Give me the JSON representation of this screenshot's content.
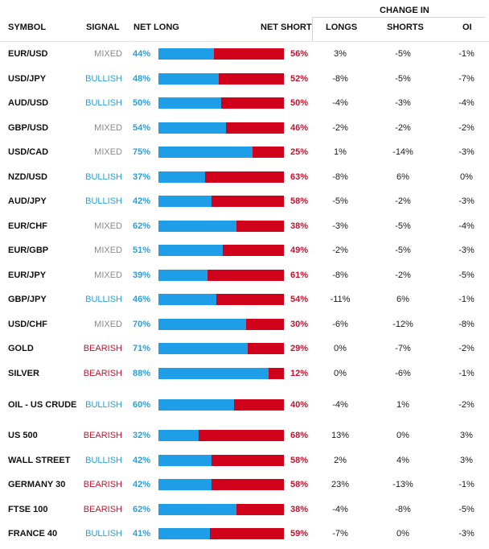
{
  "header": {
    "symbol": "SYMBOL",
    "signal": "SIGNAL",
    "net_long": "NET LONG",
    "net_short": "NET SHORT",
    "change_in": "CHANGE IN",
    "longs": "LONGS",
    "shorts": "SHORTS",
    "oi": "OI"
  },
  "colors": {
    "long_bar": "#1e9ee6",
    "short_bar": "#d0021b",
    "bullish": "#2a9fd8",
    "bearish": "#c4122f",
    "mixed": "#8a8a8a"
  },
  "rows": [
    {
      "symbol": "EUR/USD",
      "signal": "MIXED",
      "net_long": "44%",
      "net_long_value": 44,
      "net_short": "56%",
      "longs": "3%",
      "shorts": "-5%",
      "oi": "-1%"
    },
    {
      "symbol": "USD/JPY",
      "signal": "BULLISH",
      "net_long": "48%",
      "net_long_value": 48,
      "net_short": "52%",
      "longs": "-8%",
      "shorts": "-5%",
      "oi": "-7%"
    },
    {
      "symbol": "AUD/USD",
      "signal": "BULLISH",
      "net_long": "50%",
      "net_long_value": 50,
      "net_short": "50%",
      "longs": "-4%",
      "shorts": "-3%",
      "oi": "-4%"
    },
    {
      "symbol": "GBP/USD",
      "signal": "MIXED",
      "net_long": "54%",
      "net_long_value": 54,
      "net_short": "46%",
      "longs": "-2%",
      "shorts": "-2%",
      "oi": "-2%"
    },
    {
      "symbol": "USD/CAD",
      "signal": "MIXED",
      "net_long": "75%",
      "net_long_value": 75,
      "net_short": "25%",
      "longs": "1%",
      "shorts": "-14%",
      "oi": "-3%"
    },
    {
      "symbol": "NZD/USD",
      "signal": "BULLISH",
      "net_long": "37%",
      "net_long_value": 37,
      "net_short": "63%",
      "longs": "-8%",
      "shorts": "6%",
      "oi": "0%"
    },
    {
      "symbol": "AUD/JPY",
      "signal": "BULLISH",
      "net_long": "42%",
      "net_long_value": 42,
      "net_short": "58%",
      "longs": "-5%",
      "shorts": "-2%",
      "oi": "-3%"
    },
    {
      "symbol": "EUR/CHF",
      "signal": "MIXED",
      "net_long": "62%",
      "net_long_value": 62,
      "net_short": "38%",
      "longs": "-3%",
      "shorts": "-5%",
      "oi": "-4%"
    },
    {
      "symbol": "EUR/GBP",
      "signal": "MIXED",
      "net_long": "51%",
      "net_long_value": 51,
      "net_short": "49%",
      "longs": "-2%",
      "shorts": "-5%",
      "oi": "-3%"
    },
    {
      "symbol": "EUR/JPY",
      "signal": "MIXED",
      "net_long": "39%",
      "net_long_value": 39,
      "net_short": "61%",
      "longs": "-8%",
      "shorts": "-2%",
      "oi": "-5%"
    },
    {
      "symbol": "GBP/JPY",
      "signal": "BULLISH",
      "net_long": "46%",
      "net_long_value": 46,
      "net_short": "54%",
      "longs": "-11%",
      "shorts": "6%",
      "oi": "-1%"
    },
    {
      "symbol": "USD/CHF",
      "signal": "MIXED",
      "net_long": "70%",
      "net_long_value": 70,
      "net_short": "30%",
      "longs": "-6%",
      "shorts": "-12%",
      "oi": "-8%"
    },
    {
      "symbol": "GOLD",
      "signal": "BEARISH",
      "net_long": "71%",
      "net_long_value": 71,
      "net_short": "29%",
      "longs": "0%",
      "shorts": "-7%",
      "oi": "-2%"
    },
    {
      "symbol": "SILVER",
      "signal": "BEARISH",
      "net_long": "88%",
      "net_long_value": 88,
      "net_short": "12%",
      "longs": "0%",
      "shorts": "-6%",
      "oi": "-1%"
    },
    {
      "symbol": "OIL - US CRUDE",
      "signal": "BULLISH",
      "net_long": "60%",
      "net_long_value": 60,
      "net_short": "40%",
      "longs": "-4%",
      "shorts": "1%",
      "oi": "-2%"
    },
    {
      "symbol": "US 500",
      "signal": "BEARISH",
      "net_long": "32%",
      "net_long_value": 32,
      "net_short": "68%",
      "longs": "13%",
      "shorts": "0%",
      "oi": "3%"
    },
    {
      "symbol": "WALL STREET",
      "signal": "BULLISH",
      "net_long": "42%",
      "net_long_value": 42,
      "net_short": "58%",
      "longs": "2%",
      "shorts": "4%",
      "oi": "3%"
    },
    {
      "symbol": "GERMANY 30",
      "signal": "BEARISH",
      "net_long": "42%",
      "net_long_value": 42,
      "net_short": "58%",
      "longs": "23%",
      "shorts": "-13%",
      "oi": "-1%"
    },
    {
      "symbol": "FTSE 100",
      "signal": "BEARISH",
      "net_long": "62%",
      "net_long_value": 62,
      "net_short": "38%",
      "longs": "-4%",
      "shorts": "-8%",
      "oi": "-5%"
    },
    {
      "symbol": "FRANCE 40",
      "signal": "BULLISH",
      "net_long": "41%",
      "net_long_value": 41,
      "net_short": "59%",
      "longs": "-7%",
      "shorts": "0%",
      "oi": "-3%"
    }
  ]
}
